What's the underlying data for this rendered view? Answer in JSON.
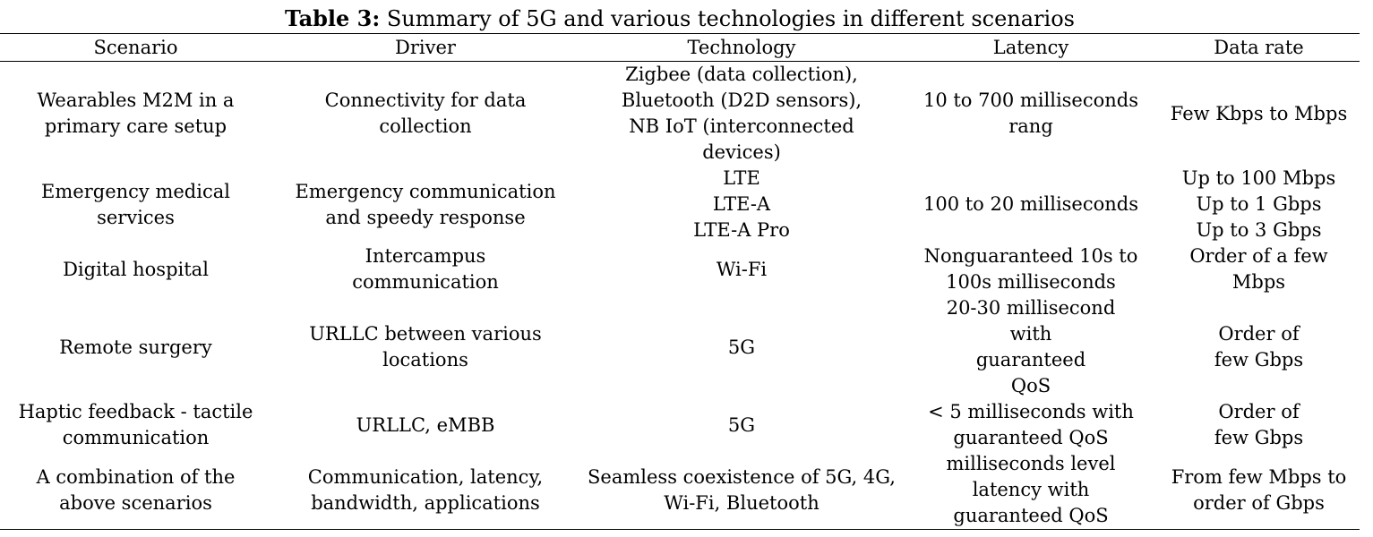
{
  "caption": {
    "label": "Table 3:",
    "text": "Summary of 5G and various technologies in different scenarios"
  },
  "table": {
    "headers": [
      "Scenario",
      "Driver",
      "Technology",
      "Latency",
      "Data rate"
    ],
    "rows": [
      {
        "scenario": "Wearables M2M in a\nprimary care setup",
        "driver": "Connectivity for data\ncollection",
        "technology": "Zigbee (data collection),\nBluetooth (D2D sensors),\nNB IoT (interconnected\ndevices)",
        "latency": "10 to 700 milliseconds\nrang",
        "data_rate": "Few Kbps to Mbps"
      },
      {
        "scenario": "Emergency medical\nservices",
        "driver": "Emergency communication\nand speedy response",
        "technology": "LTE\nLTE-A\nLTE-A Pro",
        "latency": "100 to 20 milliseconds",
        "data_rate": "Up to 100 Mbps\nUp to 1 Gbps\nUp to 3 Gbps"
      },
      {
        "scenario": "Digital hospital",
        "driver": "Intercampus\ncommunication",
        "technology": "Wi-Fi",
        "latency": "Nonguaranteed 10s to\n100s milliseconds",
        "data_rate": "Order of a few\nMbps"
      },
      {
        "scenario": "Remote surgery",
        "driver": "URLLC between various\nlocations",
        "technology": "5G",
        "latency": "20-30 millisecond\nwith\nguaranteed\nQoS",
        "data_rate": "Order of\nfew Gbps"
      },
      {
        "scenario": "Haptic feedback - tactile\ncommunication",
        "driver": "URLLC, eMBB",
        "technology": "5G",
        "latency": "< 5 milliseconds with\nguaranteed QoS",
        "data_rate": "Order of\nfew Gbps"
      },
      {
        "scenario": "A combination of the\nabove scenarios",
        "driver": "Communication, latency,\nbandwidth, applications",
        "technology": "Seamless coexistence of 5G, 4G,\nWi-Fi, Bluetooth",
        "latency": "milliseconds level\nlatency with\nguaranteed QoS",
        "data_rate": "From few Mbps to\norder of Gbps"
      }
    ]
  }
}
